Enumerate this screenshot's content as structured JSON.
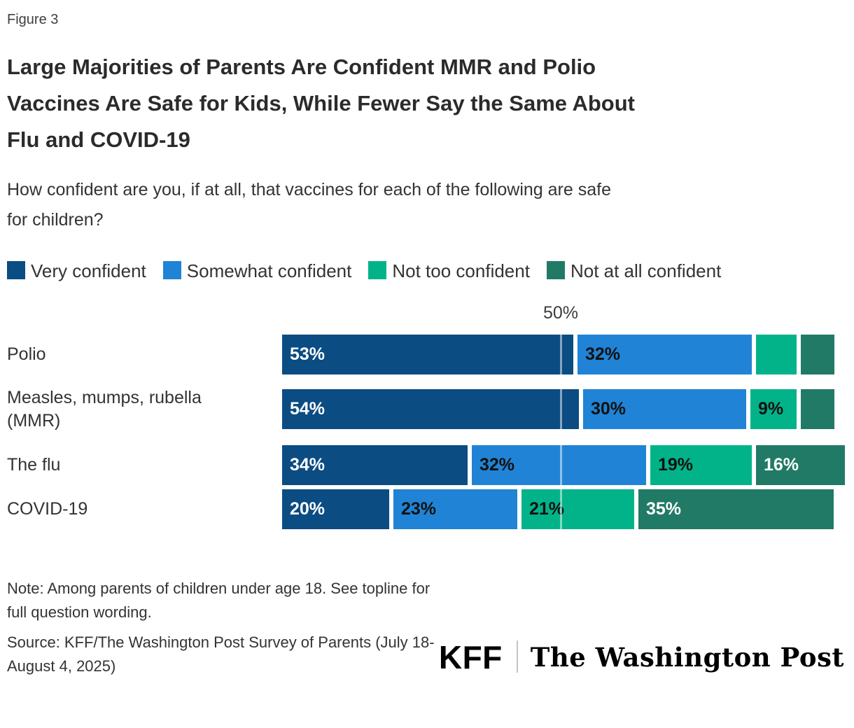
{
  "figure_label": "Figure 3",
  "header": {
    "title_lines": [
      "Large Majorities of Parents Are Confident MMR and Polio",
      "Vaccines Are Safe for Kids, While Fewer Say the Same About",
      "Flu and COVID-19"
    ],
    "subtitle_lines": [
      "How confident are you, if at all, that vaccines for each of the following are safe",
      "for children?"
    ]
  },
  "legend": [
    {
      "label": "Very confident",
      "color": "#0b4c82"
    },
    {
      "label": "Somewhat confident",
      "color": "#2083d5"
    },
    {
      "label": "Not too confident",
      "color": "#02b389"
    },
    {
      "label": "Not at all confident",
      "color": "#217a66"
    }
  ],
  "chart_data": {
    "type": "bar",
    "stacked": true,
    "orientation": "horizontal",
    "title": "Large Majorities of Parents Are Confident MMR and Polio Vaccines Are Safe for Kids, While Fewer Say the Same About Flu and COVID-19",
    "subtitle": "How confident are you, if at all, that vaccines for each of the following are safe for children?",
    "categories": [
      "Polio",
      "Measles, mumps, rubella (MMR)",
      "The flu",
      "COVID-19"
    ],
    "series": [
      {
        "name": "Very confident",
        "color": "#0b4c82",
        "values": [
          53,
          54,
          34,
          20
        ]
      },
      {
        "name": "Somewhat confident",
        "color": "#2083d5",
        "values": [
          32,
          30,
          32,
          23
        ]
      },
      {
        "name": "Not too confident",
        "color": "#02b389",
        "values": [
          8,
          9,
          19,
          21
        ]
      },
      {
        "name": "Not at all confident",
        "color": "#217a66",
        "values": [
          6,
          6,
          16,
          35
        ]
      }
    ],
    "data_labels": [
      [
        "53%",
        "32%",
        "",
        ""
      ],
      [
        "54%",
        "30%",
        "9%",
        ""
      ],
      [
        "34%",
        "32%",
        "19%",
        "16%"
      ],
      [
        "20%",
        "23%",
        "21%",
        "35%"
      ]
    ],
    "axis": {
      "tick_label": "50%",
      "tick_value": 50,
      "xlim": [
        0,
        100
      ],
      "grid": "single-tick"
    },
    "legend_position": "top",
    "value_unit": "%"
  },
  "footer": {
    "note_lines": [
      "Note: Among parents of children under age 18. See topline for",
      "full question wording."
    ],
    "source_lines": [
      "Source: KFF/The Washington Post Survey of Parents (July 18-",
      "August 4, 2025)"
    ],
    "logos": {
      "kff": "KFF",
      "wapo": "The Washington Post"
    }
  }
}
